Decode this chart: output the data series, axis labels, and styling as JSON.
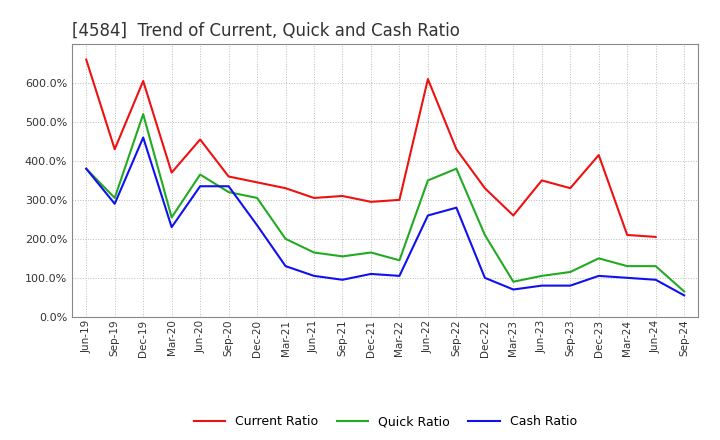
{
  "title": "[4584]  Trend of Current, Quick and Cash Ratio",
  "x_labels": [
    "Jun-19",
    "Sep-19",
    "Dec-19",
    "Mar-20",
    "Jun-20",
    "Sep-20",
    "Dec-20",
    "Mar-21",
    "Jun-21",
    "Sep-21",
    "Dec-21",
    "Mar-22",
    "Jun-22",
    "Sep-22",
    "Dec-22",
    "Mar-23",
    "Jun-23",
    "Sep-23",
    "Dec-23",
    "Mar-24",
    "Jun-24",
    "Sep-24"
  ],
  "current_ratio": [
    6.6,
    4.3,
    6.05,
    3.7,
    4.55,
    3.6,
    3.45,
    3.3,
    3.05,
    3.1,
    2.95,
    3.0,
    6.1,
    4.3,
    3.3,
    2.6,
    3.5,
    3.3,
    4.15,
    2.1,
    2.05,
    null
  ],
  "quick_ratio": [
    3.8,
    3.05,
    5.2,
    2.55,
    3.65,
    3.2,
    3.05,
    2.0,
    1.65,
    1.55,
    1.65,
    1.45,
    3.5,
    3.8,
    2.1,
    0.9,
    1.05,
    1.15,
    1.5,
    1.3,
    1.3,
    0.65
  ],
  "cash_ratio": [
    3.8,
    2.9,
    4.6,
    2.3,
    3.35,
    3.35,
    2.35,
    1.3,
    1.05,
    0.95,
    1.1,
    1.05,
    2.6,
    2.8,
    1.0,
    0.7,
    0.8,
    0.8,
    1.05,
    1.0,
    0.95,
    0.55
  ],
  "current_color": "#EE1111",
  "quick_color": "#22AA22",
  "cash_color": "#1111EE",
  "bg_color": "#FFFFFF",
  "plot_bg_color": "#FFFFFF",
  "grid_color": "#BBBBBB",
  "ylim": [
    0,
    7.0
  ],
  "ytick_vals": [
    0.0,
    1.0,
    2.0,
    3.0,
    4.0,
    5.0,
    6.0
  ],
  "legend_labels": [
    "Current Ratio",
    "Quick Ratio",
    "Cash Ratio"
  ],
  "title_color": "#333333",
  "title_fontsize": 12
}
